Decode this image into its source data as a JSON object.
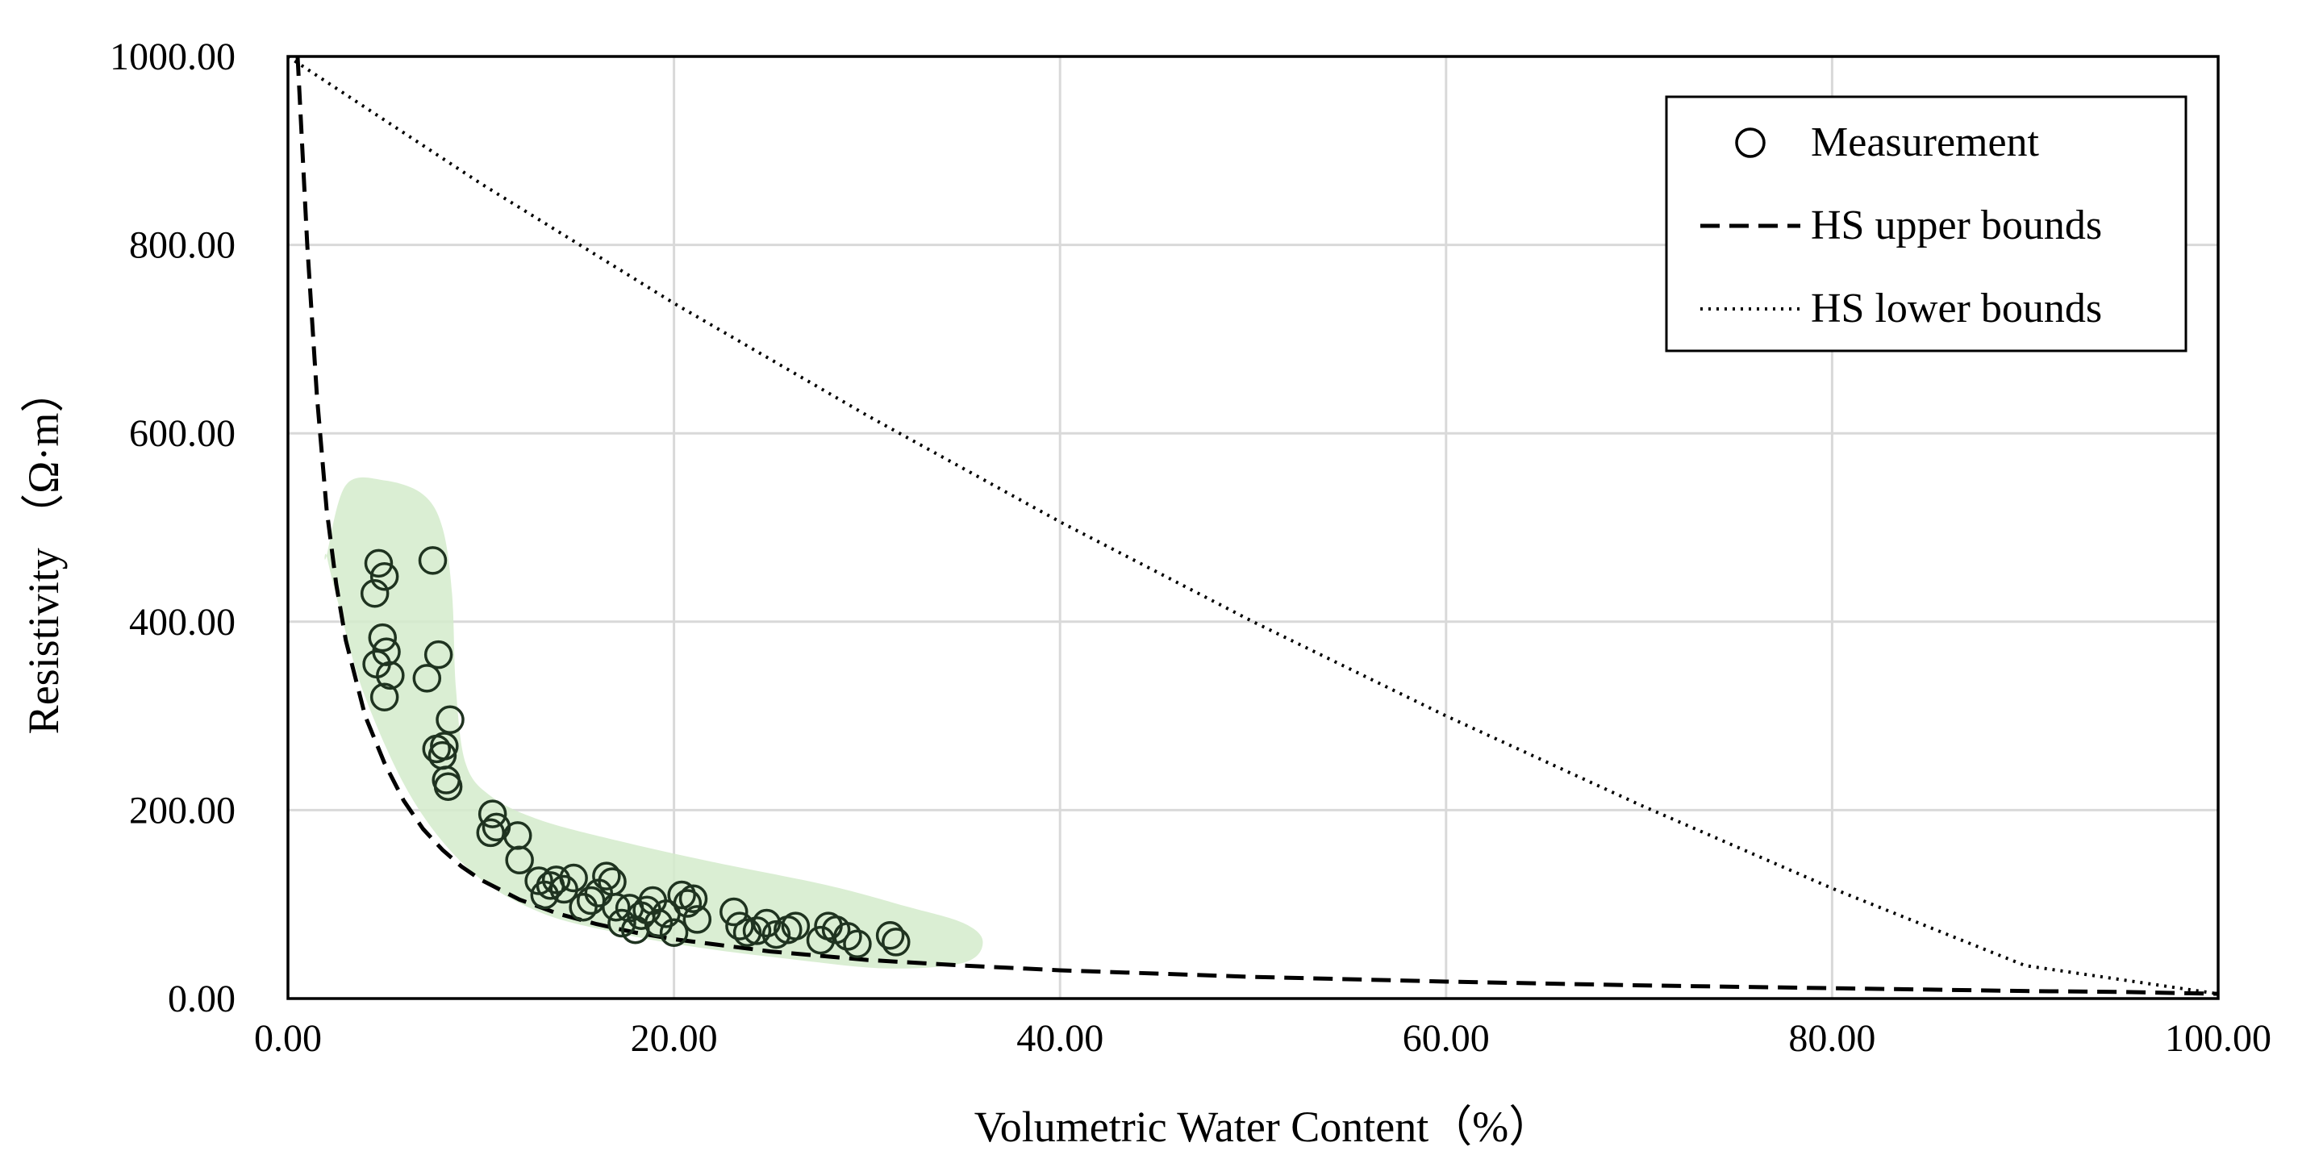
{
  "chart_data": {
    "type": "scatter",
    "title": "",
    "xlabel": "Volumetric Water Content（%）",
    "ylabel": "Resistivity （Ω·m）",
    "xlim": [
      0,
      100
    ],
    "ylim": [
      0,
      1000
    ],
    "xticks": [
      "0.00",
      "20.00",
      "40.00",
      "60.00",
      "80.00",
      "100.00"
    ],
    "yticks": [
      "0.00",
      "200.00",
      "400.00",
      "600.00",
      "800.00",
      "1000.00"
    ],
    "grid": true,
    "legend_position": "top-right",
    "legend": [
      "Measurement",
      "HS upper bounds",
      "HS lower bounds"
    ],
    "colors": {
      "marker": "#1f3320",
      "highlight": "#d4ebcb",
      "grid": "#d9d9d9",
      "line": "#000000"
    },
    "series": [
      {
        "name": "Measurement",
        "kind": "scatter",
        "x": [
          4.5,
          4.7,
          5.0,
          4.6,
          4.9,
          5.1,
          5.3,
          5.0,
          7.2,
          7.5,
          7.8,
          7.7,
          8.0,
          8.2,
          8.3,
          8.4,
          8.1,
          10.6,
          10.8,
          10.5,
          11.9,
          12.0,
          13.0,
          13.3,
          13.6,
          13.9,
          14.3,
          14.8,
          15.3,
          15.7,
          16.1,
          16.5,
          16.8,
          17.0,
          17.3,
          17.7,
          18.0,
          18.3,
          18.6,
          18.9,
          19.2,
          19.6,
          20.0,
          20.4,
          20.7,
          21.0,
          21.2,
          23.1,
          23.4,
          23.8,
          24.3,
          24.8,
          25.3,
          25.9,
          26.3,
          27.6,
          28.0,
          28.4,
          29.0,
          29.5,
          31.2,
          31.5
        ],
        "y": [
          430,
          462,
          448,
          355,
          383,
          368,
          343,
          320,
          340,
          465,
          365,
          265,
          258,
          232,
          225,
          296,
          268,
          196,
          182,
          176,
          173,
          147,
          125,
          110,
          120,
          126,
          116,
          128,
          97,
          104,
          112,
          130,
          124,
          97,
          80,
          96,
          73,
          88,
          94,
          104,
          80,
          90,
          70,
          110,
          101,
          106,
          84,
          92,
          77,
          70,
          72,
          80,
          68,
          73,
          77,
          62,
          77,
          73,
          66,
          58,
          67,
          60
        ]
      },
      {
        "name": "HS upper bounds",
        "kind": "line",
        "style": "dashed",
        "x": [
          0.5,
          1,
          1.5,
          2,
          2.5,
          3,
          3.5,
          4,
          5,
          6,
          7,
          8,
          9,
          10,
          12,
          14,
          16,
          18,
          20,
          25,
          30,
          35,
          40,
          50,
          60,
          70,
          80,
          90,
          95,
          100
        ],
        "y": [
          1000,
          800,
          640,
          520,
          440,
          380,
          340,
          300,
          250,
          210,
          180,
          158,
          140,
          126,
          105,
          90,
          79,
          70,
          63,
          50,
          41,
          35,
          30,
          23,
          18,
          14,
          11,
          8,
          7,
          5
        ]
      },
      {
        "name": "HS lower bounds",
        "kind": "line",
        "style": "dotted",
        "x": [
          0,
          10,
          20,
          30,
          40,
          50,
          60,
          70,
          80,
          90,
          100
        ],
        "y": [
          1000,
          865,
          738,
          619,
          506,
          400,
          300,
          206,
          117,
          35,
          5
        ]
      }
    ],
    "highlight_region": {
      "description": "shaded region around measurements",
      "x": [
        2.0,
        3.0,
        5.0,
        7.0,
        8.0,
        8.5,
        8.7,
        9.2,
        10.5,
        13.0,
        17.0,
        22.0,
        28.0,
        32.0,
        35.0,
        36.0,
        35.0,
        31.0,
        26.0,
        21.0,
        17.0,
        13.0,
        9.5,
        6.5,
        4.0,
        2.6,
        2.0
      ],
      "y": [
        470,
        545,
        550,
        535,
        500,
        430,
        330,
        250,
        215,
        190,
        168,
        145,
        120,
        98,
        80,
        60,
        38,
        32,
        42,
        55,
        70,
        92,
        135,
        210,
        320,
        420,
        470
      ]
    }
  }
}
